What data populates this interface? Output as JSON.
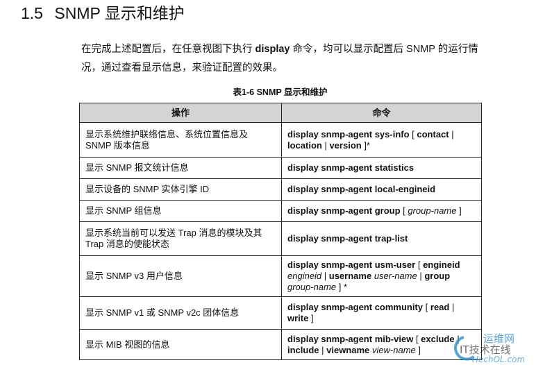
{
  "section": {
    "number": "1.5",
    "title": "SNMP 显示和维护"
  },
  "paragraph": {
    "before": "在完成上述配置后，在任意视图下执行 ",
    "keyword": "display",
    "after": " 命令，均可以显示配置后 SNMP 的运行情况，通过查看显示信息，来验证配置的效果。"
  },
  "table": {
    "caption": "表1-6  SNMP 显示和维护",
    "headers": [
      "操作",
      "命令"
    ],
    "rows": [
      {
        "op": "显示系统维护联络信息、系统位置信息及 SNMP 版本信息",
        "cmd": [
          [
            "b",
            "display snmp-agent sys-info"
          ],
          [
            "n",
            " [ "
          ],
          [
            "b",
            "contact"
          ],
          [
            "n",
            " | "
          ],
          [
            "b",
            "location"
          ],
          [
            "n",
            " | "
          ],
          [
            "b",
            "version"
          ],
          [
            "n",
            " ]*"
          ]
        ]
      },
      {
        "op": "显示 SNMP 报文统计信息",
        "cmd": [
          [
            "b",
            "display snmp-agent statistics"
          ]
        ]
      },
      {
        "op": "显示设备的 SNMP 实体引擎 ID",
        "cmd": [
          [
            "b",
            "display snmp-agent local-engineid"
          ]
        ]
      },
      {
        "op": "显示 SNMP 组信息",
        "cmd": [
          [
            "b",
            "display snmp-agent group"
          ],
          [
            "n",
            " [ "
          ],
          [
            "i",
            "group-name"
          ],
          [
            "n",
            " ]"
          ]
        ]
      },
      {
        "op": "显示系统当前可以发送 Trap 消息的模块及其 Trap 消息的使能状态",
        "cmd": [
          [
            "b",
            "display snmp-agent trap-list"
          ]
        ]
      },
      {
        "op": "显示 SNMP v3 用户信息",
        "cmd": [
          [
            "b",
            "display snmp-agent usm-user"
          ],
          [
            "n",
            " [ "
          ],
          [
            "b",
            "engineid"
          ],
          [
            "n",
            " "
          ],
          [
            "i",
            "engineid"
          ],
          [
            "n",
            " | "
          ],
          [
            "b",
            "username"
          ],
          [
            "n",
            " "
          ],
          [
            "i",
            "user-name"
          ],
          [
            "n",
            " | "
          ],
          [
            "b",
            "group"
          ],
          [
            "n",
            " "
          ],
          [
            "i",
            "group-name"
          ],
          [
            "n",
            " ] *"
          ]
        ]
      },
      {
        "op": "显示 SNMP v1 或 SNMP v2c 团体信息",
        "cmd": [
          [
            "b",
            "display snmp-agent community"
          ],
          [
            "n",
            " [ "
          ],
          [
            "b",
            "read"
          ],
          [
            "n",
            " | "
          ],
          [
            "b",
            "write"
          ],
          [
            "n",
            " ]"
          ]
        ]
      },
      {
        "op": "显示 MIB 视图的信息",
        "cmd": [
          [
            "b",
            "display snmp-agent mib-view"
          ],
          [
            "n",
            " [ "
          ],
          [
            "b",
            "exclude"
          ],
          [
            "n",
            " | "
          ],
          [
            "b",
            "include"
          ],
          [
            "n",
            " | "
          ],
          [
            "b",
            "viewname"
          ],
          [
            "n",
            " "
          ],
          [
            "i",
            "view-name"
          ],
          [
            "n",
            " ]"
          ]
        ]
      }
    ]
  },
  "watermark": {
    "line1": "运维网",
    "line2": "IT技术在线",
    "line3": "HechOL.com",
    "color": "#2a8fd0"
  }
}
